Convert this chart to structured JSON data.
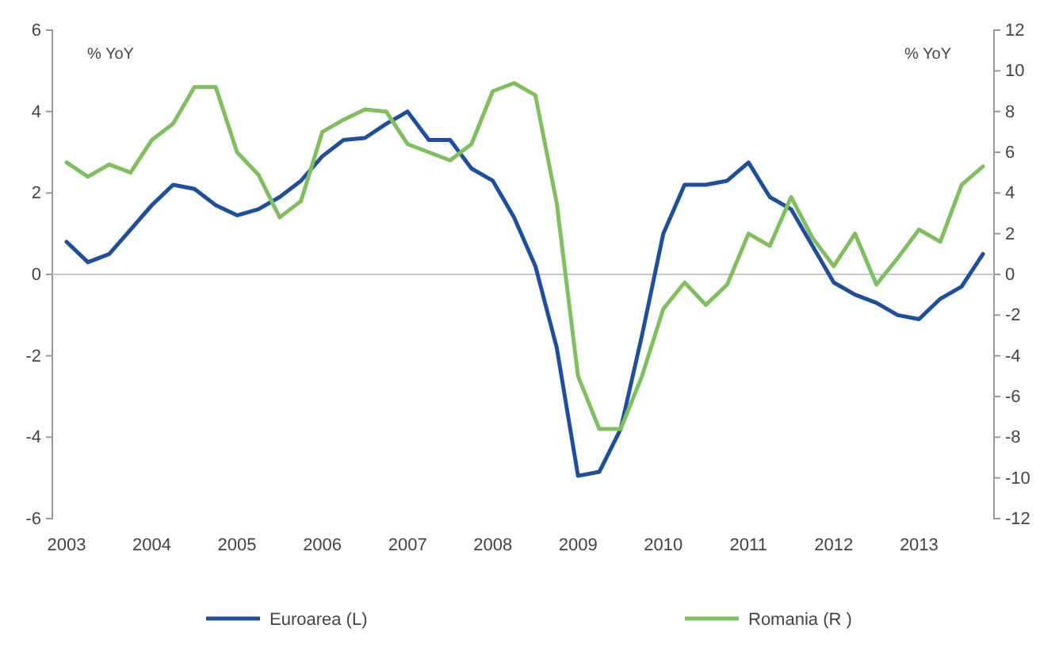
{
  "chart_data": {
    "type": "line",
    "ylabel": "% YoY",
    "y2label": "% YoY",
    "categories": [
      "2003",
      null,
      null,
      null,
      "2004",
      null,
      null,
      null,
      "2005",
      null,
      null,
      null,
      "2006",
      null,
      null,
      null,
      "2007",
      null,
      null,
      null,
      "2008",
      null,
      null,
      null,
      "2009",
      null,
      null,
      null,
      "2010",
      null,
      null,
      null,
      "2011",
      null,
      null,
      null,
      "2012",
      null,
      null,
      null,
      "2013",
      null,
      null,
      null
    ],
    "series": [
      {
        "name": "Euroarea (L)",
        "color": "#1f4e9c",
        "values": [
          0.8,
          0.3,
          0.5,
          1.1,
          1.7,
          2.2,
          2.1,
          1.7,
          1.45,
          1.6,
          1.9,
          2.3,
          2.9,
          3.3,
          3.35,
          3.7,
          4.0,
          3.3,
          3.3,
          2.6,
          2.3,
          1.4,
          0.2,
          -1.8,
          -4.95,
          -4.85,
          -3.8,
          -1.5,
          1.0,
          2.2,
          2.2,
          2.3,
          2.75,
          1.9,
          1.6,
          0.7,
          -0.2,
          -0.5,
          -0.7,
          -1.0,
          -1.1,
          -0.6,
          -0.3,
          0.5
        ]
      },
      {
        "name": "Romania (R )",
        "color": "#7fbf5f",
        "axis": "y2",
        "values": [
          5.5,
          4.8,
          5.4,
          5.0,
          6.6,
          7.4,
          9.2,
          9.2,
          6.0,
          4.9,
          2.8,
          3.6,
          7.0,
          7.6,
          8.1,
          8.0,
          6.4,
          6.0,
          5.6,
          6.4,
          9.0,
          9.4,
          8.8,
          3.5,
          -5.0,
          -7.6,
          -7.6,
          -5.0,
          -1.7,
          -0.4,
          -1.5,
          -0.5,
          2.0,
          1.4,
          3.8,
          1.8,
          0.4,
          2.0,
          -0.5,
          0.8,
          2.2,
          1.6,
          4.4,
          5.3
        ]
      }
    ],
    "ylim": [
      -6,
      6
    ],
    "yticks": [
      -6,
      -4,
      -2,
      0,
      2,
      4,
      6
    ],
    "y2lim": [
      -12,
      12
    ],
    "y2ticks": [
      -12,
      -10,
      -8,
      -6,
      -4,
      -2,
      0,
      2,
      4,
      6,
      8,
      10,
      12
    ],
    "ref_lines": [
      {
        "axis": "y",
        "value": 0,
        "color": "#c8c8c8"
      }
    ],
    "grid": false,
    "legend": "bottom",
    "line_style": "solid",
    "marker": "none"
  }
}
